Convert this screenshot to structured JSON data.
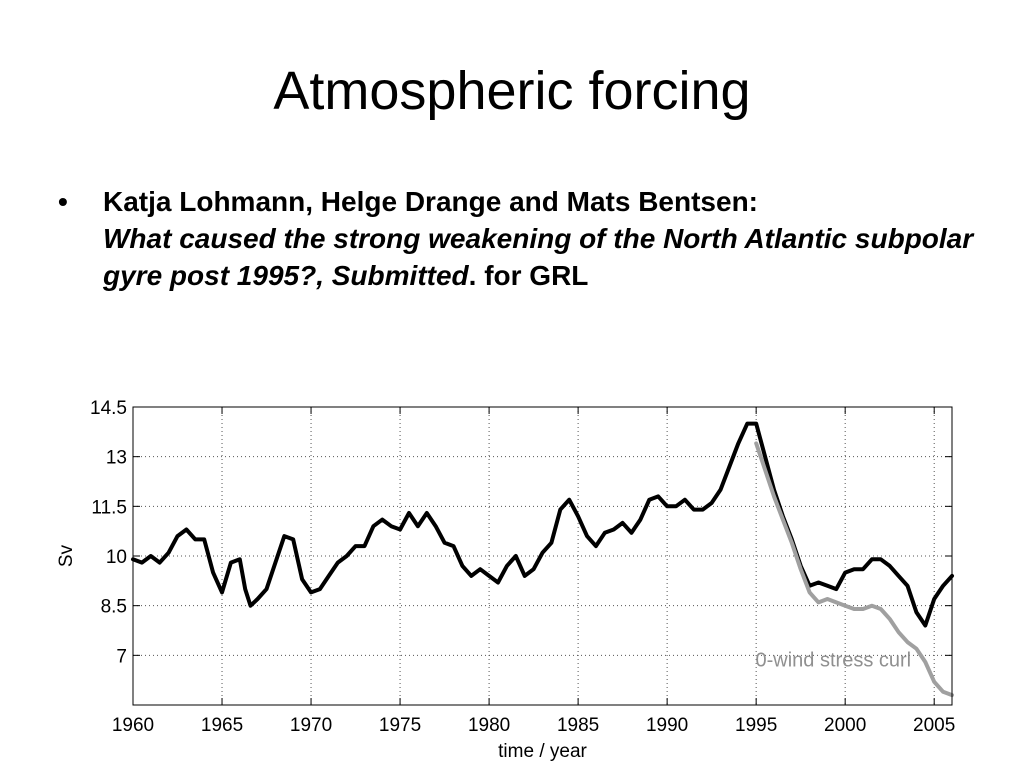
{
  "slide": {
    "title": "Atmospheric forcing",
    "bullet_marker": "•",
    "authors": "Katja Lohmann, Helge Drange and Mats Bentsen:",
    "paper_title": "What caused the strong weakening of the North Atlantic subpolar gyre post 1995?, Submitted",
    "paper_suffix": ". for GRL"
  },
  "chart_data": {
    "type": "line",
    "title": "",
    "xlabel": "time / year",
    "ylabel": "Sv",
    "xlim": [
      1960,
      2006
    ],
    "ylim": [
      5.5,
      14.5
    ],
    "xticks": [
      1960,
      1965,
      1970,
      1975,
      1980,
      1985,
      1990,
      1995,
      2000,
      2005
    ],
    "xtick_labels": [
      "1960",
      "1965",
      "1970",
      "1975",
      "1980",
      "1985",
      "1990",
      "1995",
      "2000",
      "2005"
    ],
    "yticks": [
      7,
      8.5,
      10,
      11.5,
      13,
      14.5
    ],
    "ytick_labels": [
      "7",
      "8.5",
      "10",
      "11.5",
      "13",
      "14.5"
    ],
    "grid": true,
    "annotations": [
      {
        "text": "0-wind stress curl",
        "x": 2000.3,
        "y": 6.9,
        "color": "#909090"
      }
    ],
    "series": [
      {
        "color": "#000000",
        "x": [
          1960,
          1960.5,
          1961,
          1961.5,
          1962,
          1962.5,
          1963,
          1963.5,
          1964,
          1964.5,
          1965,
          1965.5,
          1966,
          1966.3,
          1966.6,
          1967,
          1967.5,
          1968,
          1968.5,
          1969,
          1969.5,
          1970,
          1970.5,
          1971,
          1971.5,
          1972,
          1972.5,
          1973,
          1973.5,
          1974,
          1974.5,
          1975,
          1975.5,
          1976,
          1976.5,
          1977,
          1977.5,
          1978,
          1978.5,
          1979,
          1979.5,
          1980,
          1980.5,
          1981,
          1981.5,
          1982,
          1982.5,
          1983,
          1983.5,
          1984,
          1984.5,
          1985,
          1985.5,
          1986,
          1986.5,
          1987,
          1987.5,
          1988,
          1988.5,
          1989,
          1989.5,
          1990,
          1990.5,
          1991,
          1991.5,
          1992,
          1992.5,
          1993,
          1993.5,
          1994,
          1994.5,
          1995,
          1995.5,
          1996,
          1996.5,
          1997,
          1997.5,
          1998,
          1998.5,
          1999,
          1999.5,
          2000,
          2000.5,
          2001,
          2001.5,
          2002,
          2002.5,
          2003,
          2003.5,
          2004,
          2004.5,
          2005,
          2005.5,
          2006
        ],
        "values": [
          9.9,
          9.8,
          10,
          9.8,
          10.1,
          10.6,
          10.8,
          10.5,
          10.5,
          9.5,
          8.9,
          9.8,
          9.9,
          9,
          8.5,
          8.7,
          9,
          9.8,
          10.6,
          10.5,
          9.3,
          8.9,
          9,
          9.4,
          9.8,
          10,
          10.3,
          10.3,
          10.9,
          11.1,
          10.9,
          10.8,
          11.3,
          10.9,
          11.3,
          10.9,
          10.4,
          10.3,
          9.7,
          9.4,
          9.6,
          9.4,
          9.2,
          9.7,
          10,
          9.4,
          9.6,
          10.1,
          10.4,
          11.4,
          11.7,
          11.2,
          10.6,
          10.3,
          10.7,
          10.8,
          11,
          10.7,
          11.1,
          11.7,
          11.8,
          11.5,
          11.5,
          11.7,
          11.4,
          11.4,
          11.6,
          12,
          12.7,
          13.4,
          14,
          14,
          13,
          12,
          11.2,
          10.5,
          9.7,
          9.1,
          9.2,
          9.1,
          9,
          9.5,
          9.6,
          9.6,
          9.9,
          9.9,
          9.7,
          9.4,
          9.1,
          8.3,
          7.9,
          8.7,
          9.1,
          9.4
        ]
      },
      {
        "color": "#a0a0a0",
        "x": [
          1995,
          1995.5,
          1996,
          1996.5,
          1997,
          1997.5,
          1998,
          1998.5,
          1999,
          1999.5,
          2000,
          2000.5,
          2001,
          2001.5,
          2002,
          2002.5,
          2003,
          2003.5,
          2004,
          2004.5,
          2005,
          2005.5,
          2006
        ],
        "values": [
          13.4,
          12.6,
          11.8,
          11.1,
          10.4,
          9.6,
          8.9,
          8.6,
          8.7,
          8.6,
          8.5,
          8.4,
          8.4,
          8.5,
          8.4,
          8.1,
          7.7,
          7.4,
          7.2,
          6.8,
          6.2,
          5.9,
          5.8
        ]
      }
    ]
  }
}
